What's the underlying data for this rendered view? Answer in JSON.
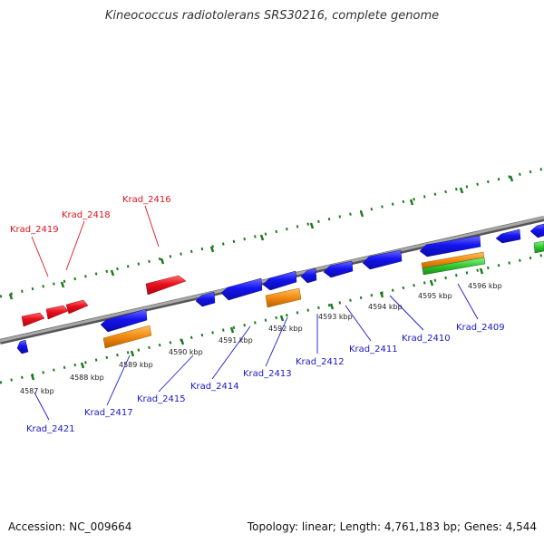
{
  "title": "Kineococcus radiotolerans SRS30216, complete genome",
  "footer": {
    "accession": "Accession: NC_009664",
    "topology": "Topology: linear; Length: 4,761,183 bp; Genes: 4,544"
  },
  "colors": {
    "forward_gene": "#e8101c",
    "reverse_gene": "#1414f0",
    "rna_feature": "#f08a10",
    "other_feature": "#30c830",
    "backbone": "#888888",
    "tick": "#1e7a1e"
  },
  "scale_labels": [
    "4587 kbp",
    "4588 kbp",
    "4589 kbp",
    "4590 kbp",
    "4591 kbp",
    "4592 kbp",
    "4593 kbp",
    "4594 kbp",
    "4595 kbp",
    "4596 kbp"
  ],
  "forward_genes": [
    "Krad_2419",
    "Krad_2418",
    "Krad_2416"
  ],
  "reverse_genes": [
    "Krad_2421",
    "Krad_2417",
    "Krad_2415",
    "Krad_2414",
    "Krad_2413",
    "Krad_2412",
    "Krad_2411",
    "Krad_2410",
    "Krad_2409"
  ]
}
